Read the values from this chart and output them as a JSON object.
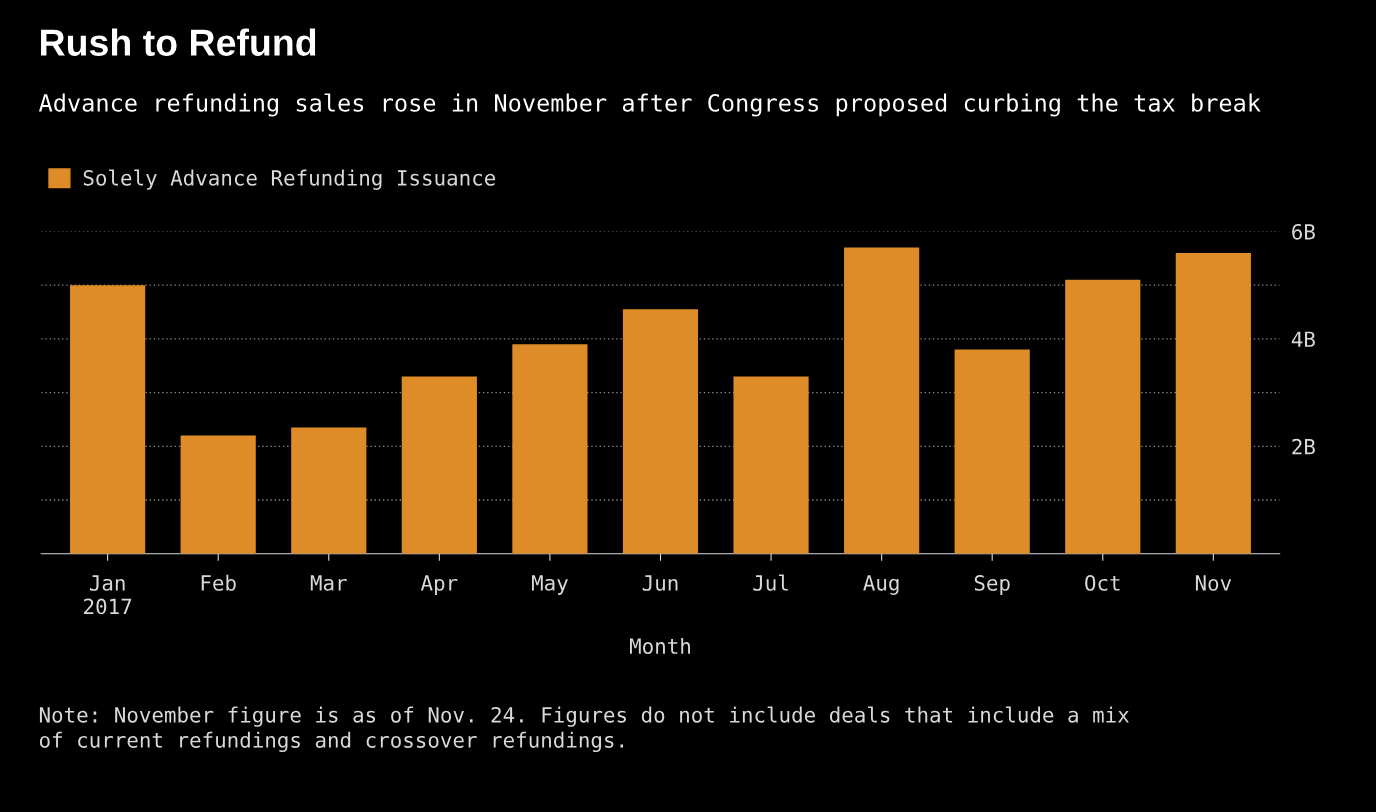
{
  "chart_data": {
    "type": "bar",
    "title": "Rush to Refund",
    "subtitle": "Advance refunding sales rose in November after Congress proposed curbing the tax break",
    "xlabel": "Month",
    "categories": [
      "Jan\n2017",
      "Feb",
      "Mar",
      "Apr",
      "May",
      "Jun",
      "Jul",
      "Aug",
      "Sep",
      "Oct",
      "Nov"
    ],
    "series": [
      {
        "name": "Solely Advance Refunding Issuance",
        "color": "#dd8c28",
        "values": [
          5.0,
          2.2,
          2.35,
          3.3,
          3.9,
          4.55,
          3.3,
          5.7,
          3.8,
          5.1,
          5.6
        ]
      }
    ],
    "ylim": [
      0,
      6
    ],
    "yticks": [
      {
        "value": 1,
        "label": null
      },
      {
        "value": 2,
        "label": "2B"
      },
      {
        "value": 3,
        "label": null
      },
      {
        "value": 4,
        "label": "4B"
      },
      {
        "value": 5,
        "label": null
      },
      {
        "value": 6,
        "label": "6B"
      }
    ],
    "grid": "y",
    "legend": "top left",
    "annotations": [
      "Note: November figure is as of Nov. 24. Figures do not include deals that include a mix\nof current refundings and crossover refundings."
    ]
  }
}
